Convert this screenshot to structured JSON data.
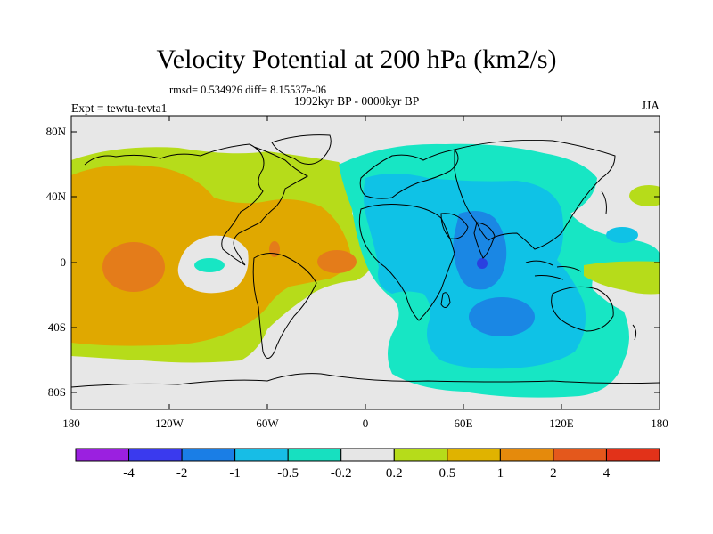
{
  "title": "Velocity Potential at 200 hPa (km2/s)",
  "stats": "rmsd= 0.534926 diff= 8.15537e-06",
  "left_label": "Expt = tewtu-tevta1",
  "center_label": "1992kyr BP - 0000kyr BP",
  "right_label": "JJA",
  "colors": {
    "land_outline": "#000000",
    "neutral": "#e7e7e7",
    "lev_p02": "#b6dc1a",
    "lev_p05": "#e0a800",
    "lev_p1": "#e47c1a",
    "lev_p2": "#e4520f",
    "lev_m02": "#17e6c4",
    "lev_m05": "#0fc2e6",
    "lev_m1": "#1a87e4",
    "lev_m2": "#2a40e0",
    "lev_m4": "#8a1ad8"
  },
  "map": {
    "lat_ticks": [
      "80N",
      "40N",
      "0",
      "40S",
      "80S"
    ],
    "lon_ticks": [
      "180",
      "120W",
      "60W",
      "0",
      "60E",
      "120E",
      "180"
    ]
  },
  "colorbar": {
    "colors": [
      "#9b20e0",
      "#3a3aee",
      "#1a7ee6",
      "#17bde6",
      "#17e0c0",
      "#e6e6e6",
      "#b6dc1a",
      "#e0b300",
      "#e58a0c",
      "#e4581c",
      "#e23219"
    ],
    "labels": [
      "-4",
      "-2",
      "-1",
      "-0.5",
      "-0.2",
      "0.2",
      "0.5",
      "1",
      "2",
      "4"
    ]
  }
}
